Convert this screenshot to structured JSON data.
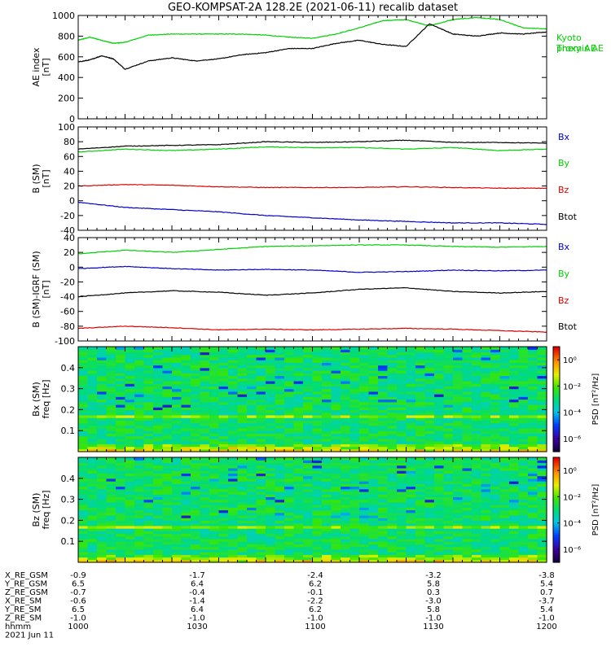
{
  "title": "GEO-KOMPSAT-2A 128.2E (2021-06-11) recalib dataset",
  "colors": {
    "black": "#000000",
    "green": "#00d000",
    "blue": "#0000cc",
    "red": "#dd0000"
  },
  "chart_data": [
    {
      "type": "line",
      "panel": "ae",
      "ylabel": "AE index\n[nT]",
      "ylim": [
        0,
        1000
      ],
      "yticks": [
        0,
        200,
        400,
        600,
        800,
        1000
      ],
      "x_unit": "hhmm",
      "xlim": [
        1000,
        1200
      ],
      "series": [
        {
          "name": "Kyoto proxy AE",
          "color": "green",
          "x": [
            1000,
            1005,
            1010,
            1015,
            1020,
            1030,
            1040,
            1050,
            1060,
            1070,
            1080,
            1090,
            1100,
            1110,
            1120,
            1130,
            1140,
            1150,
            1160,
            1170,
            1180,
            1190,
            1200
          ],
          "y": [
            760,
            790,
            760,
            730,
            740,
            810,
            820,
            820,
            820,
            820,
            810,
            790,
            780,
            820,
            880,
            950,
            960,
            900,
            960,
            980,
            960,
            880,
            870
          ]
        },
        {
          "name": "Themis AE",
          "color": "black",
          "x": [
            1000,
            1005,
            1010,
            1015,
            1020,
            1030,
            1040,
            1050,
            1060,
            1070,
            1080,
            1090,
            1100,
            1110,
            1120,
            1130,
            1140,
            1150,
            1160,
            1170,
            1180,
            1190,
            1200
          ],
          "y": [
            550,
            570,
            610,
            580,
            480,
            560,
            590,
            560,
            580,
            620,
            640,
            680,
            680,
            730,
            760,
            720,
            700,
            920,
            820,
            800,
            830,
            820,
            840
          ]
        }
      ]
    },
    {
      "type": "line",
      "panel": "b_sm",
      "ylabel": "B (SM)\n[nT]",
      "ylim": [
        -40,
        100
      ],
      "yticks": [
        -40,
        -20,
        0,
        20,
        40,
        60,
        80,
        100
      ],
      "xlim": [
        1000,
        1200
      ],
      "series": [
        {
          "name": "Bx",
          "color": "blue",
          "x": [
            1000,
            1020,
            1040,
            1060,
            1080,
            1100,
            1120,
            1140,
            1160,
            1180,
            1200
          ],
          "y": [
            -2,
            -9,
            -12,
            -15,
            -20,
            -23,
            -26,
            -28,
            -30,
            -30,
            -32
          ]
        },
        {
          "name": "By",
          "color": "green",
          "x": [
            1000,
            1020,
            1040,
            1060,
            1080,
            1100,
            1120,
            1140,
            1160,
            1180,
            1200
          ],
          "y": [
            66,
            70,
            68,
            70,
            73,
            72,
            72,
            70,
            72,
            68,
            70
          ]
        },
        {
          "name": "Bz",
          "color": "red",
          "x": [
            1000,
            1020,
            1040,
            1060,
            1080,
            1100,
            1120,
            1140,
            1160,
            1180,
            1200
          ],
          "y": [
            20,
            22,
            21,
            19,
            18,
            18,
            18,
            19,
            18,
            17,
            17
          ]
        },
        {
          "name": "Btot",
          "color": "black",
          "x": [
            1000,
            1020,
            1040,
            1060,
            1080,
            1100,
            1120,
            1140,
            1160,
            1180,
            1200
          ],
          "y": [
            70,
            74,
            75,
            76,
            80,
            79,
            80,
            82,
            79,
            79,
            78
          ]
        }
      ]
    },
    {
      "type": "line",
      "panel": "b_minus_igrf",
      "ylabel": "B (SM)-IGRF (SM)\n[nT]",
      "ylim": [
        -100,
        40
      ],
      "yticks": [
        -100,
        -80,
        -60,
        -40,
        -20,
        0,
        20,
        40
      ],
      "xlim": [
        1000,
        1200
      ],
      "series": [
        {
          "name": "Bx",
          "color": "green",
          "x": [
            1000,
            1020,
            1040,
            1060,
            1080,
            1100,
            1120,
            1140,
            1160,
            1180,
            1200
          ],
          "y": [
            18,
            23,
            20,
            24,
            28,
            29,
            30,
            30,
            28,
            27,
            28
          ]
        },
        {
          "name": "By",
          "color": "blue",
          "x": [
            1000,
            1020,
            1040,
            1060,
            1080,
            1100,
            1120,
            1140,
            1160,
            1180,
            1200
          ],
          "y": [
            -2,
            1,
            -2,
            -4,
            -3,
            -4,
            -7,
            -6,
            -4,
            -5,
            -4
          ]
        },
        {
          "name": "Bz",
          "color": "red",
          "x": [
            1000,
            1020,
            1040,
            1060,
            1080,
            1100,
            1120,
            1140,
            1160,
            1180,
            1200
          ],
          "y": [
            -83,
            -80,
            -82,
            -85,
            -84,
            -85,
            -84,
            -83,
            -84,
            -86,
            -88
          ]
        },
        {
          "name": "Btot",
          "color": "black",
          "x": [
            1000,
            1020,
            1040,
            1060,
            1080,
            1100,
            1120,
            1140,
            1160,
            1180,
            1200
          ],
          "y": [
            -40,
            -35,
            -32,
            -34,
            -38,
            -35,
            -30,
            -28,
            -33,
            -35,
            -33
          ]
        }
      ]
    },
    {
      "type": "heatmap",
      "panel": "bx_spec",
      "ylabel": "Bx (SM)\nfreq [Hz]",
      "ylim": [
        0,
        0.5
      ],
      "yticks": [
        0.1,
        0.2,
        0.3,
        0.4
      ],
      "xlim": [
        1000,
        1200
      ],
      "colorbar": {
        "label": "PSD [nT²/Hz]",
        "ticks": [
          "10⁰",
          "10⁻²",
          "10⁻⁴",
          "10⁻⁶"
        ],
        "log_range": [
          -7,
          1
        ]
      },
      "description": "broadband PSD near 1e-3 nT^2/Hz with stronger power below 0.04 Hz and a narrow enhancement near 0.165 Hz"
    },
    {
      "type": "heatmap",
      "panel": "bz_spec",
      "ylabel": "Bz (SM)\nfreq [Hz]",
      "ylim": [
        0,
        0.5
      ],
      "yticks": [
        0.1,
        0.2,
        0.3,
        0.4
      ],
      "xlim": [
        1000,
        1200
      ],
      "colorbar": {
        "label": "PSD [nT²/Hz]",
        "ticks": [
          "10⁰",
          "10⁻²",
          "10⁻⁴",
          "10⁻⁶"
        ],
        "log_range": [
          -7,
          1
        ]
      },
      "description": "broadband PSD near 1e-3 nT^2/Hz with stronger power below 0.04 Hz and a narrow enhancement near 0.165 Hz"
    }
  ],
  "legends": {
    "ae": [
      "Kyoto\nproxy AE",
      "Themis AE"
    ],
    "b_sm": [
      "Bx",
      "By",
      "Bz",
      "Btot"
    ],
    "b_minus_igrf": [
      "Bx",
      "By",
      "Bz",
      "Btot"
    ]
  },
  "ephemeris": {
    "rows": [
      {
        "label": "X_RE_GSM",
        "values": [
          "-0.9",
          "-1.7",
          "-2.4",
          "-3.2",
          "-3.8"
        ]
      },
      {
        "label": "Y_RE_GSM",
        "values": [
          "6.5",
          "6.4",
          "6.2",
          "5.8",
          "5.4"
        ]
      },
      {
        "label": "Z_RE_GSM",
        "values": [
          "-0.7",
          "-0.4",
          "-0.1",
          "0.3",
          "0.7"
        ]
      },
      {
        "label": "X_RE_SM",
        "values": [
          "-0.6",
          "-1.4",
          "-2.2",
          "-3.0",
          "-3.7"
        ]
      },
      {
        "label": "Y_RE_SM",
        "values": [
          "6.5",
          "6.4",
          "6.2",
          "5.8",
          "5.4"
        ]
      },
      {
        "label": "Z_RE_SM",
        "values": [
          "-1.0",
          "-1.0",
          "-1.0",
          "-1.0",
          "-1.0"
        ]
      },
      {
        "label": "hhmm",
        "values": [
          "1000",
          "1030",
          "1100",
          "1130",
          "1200"
        ]
      }
    ],
    "date": "2021 Jun 11"
  }
}
